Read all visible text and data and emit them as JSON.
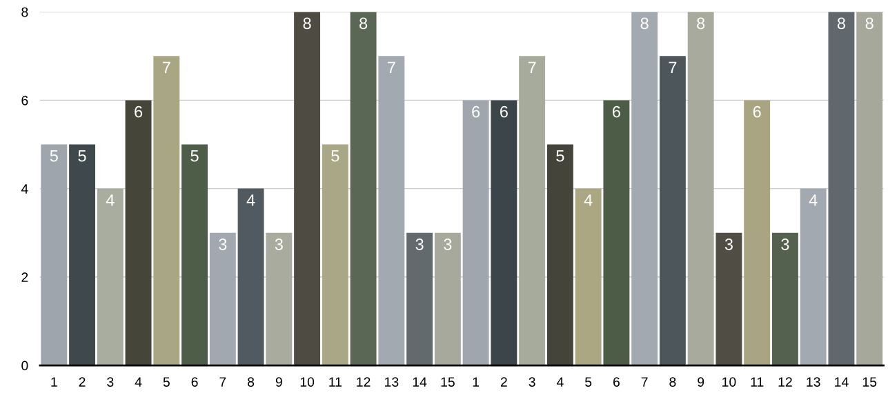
{
  "chart_data": {
    "type": "bar",
    "categories": [
      "1",
      "2",
      "3",
      "4",
      "5",
      "6",
      "7",
      "8",
      "9",
      "10",
      "11",
      "12",
      "13",
      "14",
      "15",
      "1",
      "2",
      "3",
      "4",
      "5",
      "6",
      "7",
      "8",
      "9",
      "10",
      "11",
      "12",
      "13",
      "14",
      "15"
    ],
    "values": [
      5,
      5,
      4,
      6,
      7,
      5,
      3,
      4,
      3,
      8,
      5,
      8,
      7,
      3,
      3,
      6,
      6,
      7,
      5,
      4,
      6,
      8,
      7,
      8,
      3,
      6,
      3,
      4,
      8,
      8
    ],
    "colors": [
      "#9ea5ac",
      "#3f484c",
      "#a9ad9f",
      "#46453a",
      "#a9a684",
      "#4e5d48",
      "#a2a8af",
      "#515a60",
      "#a8ab9e",
      "#4d4b42",
      "#aaa786",
      "#5b6755",
      "#a3a9b0",
      "#636a6e",
      "#a6a99b",
      "#9fa6ad",
      "#3c4549",
      "#a7ab9c",
      "#45443a",
      "#aaa782",
      "#4d5c47",
      "#a3a9b1",
      "#4d565b",
      "#a7aa9c",
      "#4f4d44",
      "#a9a582",
      "#55614f",
      "#a3a9b0",
      "#60686d",
      "#a5a89a"
    ],
    "ylim": [
      0,
      8
    ],
    "yticks": [
      0,
      2,
      4,
      6,
      8
    ],
    "grid": "y",
    "data_labels": true
  }
}
